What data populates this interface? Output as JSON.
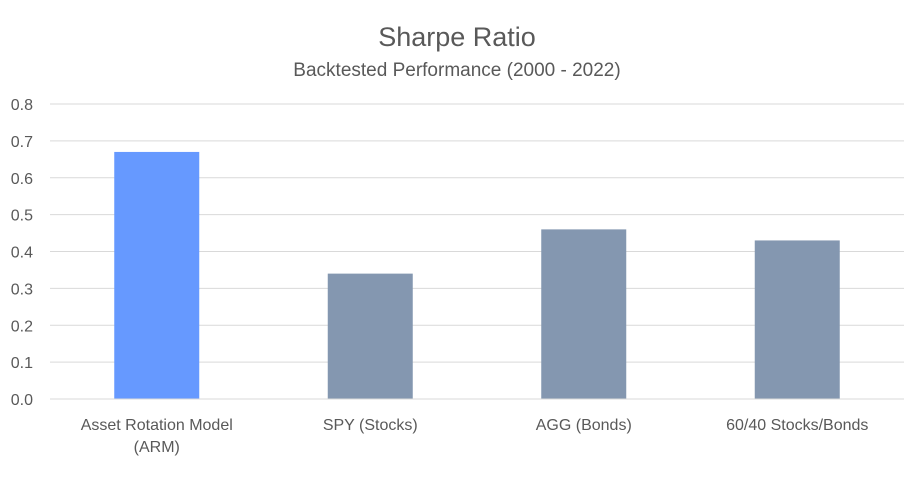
{
  "chart_data": {
    "type": "bar",
    "title": "Sharpe Ratio",
    "subtitle": "Backtested Performance (2000 - 2022)",
    "categories": [
      "Asset Rotation Model (ARM)",
      "SPY (Stocks)",
      "AGG (Bonds)",
      "60/40 Stocks/Bonds"
    ],
    "category_lines": [
      [
        "Asset Rotation Model",
        "(ARM)"
      ],
      [
        "SPY (Stocks)"
      ],
      [
        "AGG (Bonds)"
      ],
      [
        "60/40 Stocks/Bonds"
      ]
    ],
    "values": [
      0.67,
      0.34,
      0.46,
      0.43
    ],
    "bar_colors": [
      "#6699ff",
      "#8497b0",
      "#8497b0",
      "#8497b0"
    ],
    "ylim": [
      0,
      0.8
    ],
    "yticks": [
      "0.0",
      "0.1",
      "0.2",
      "0.3",
      "0.4",
      "0.5",
      "0.6",
      "0.7",
      "0.8"
    ],
    "grid": true,
    "legend": "none",
    "gridline_color": "#d9d9d9"
  }
}
